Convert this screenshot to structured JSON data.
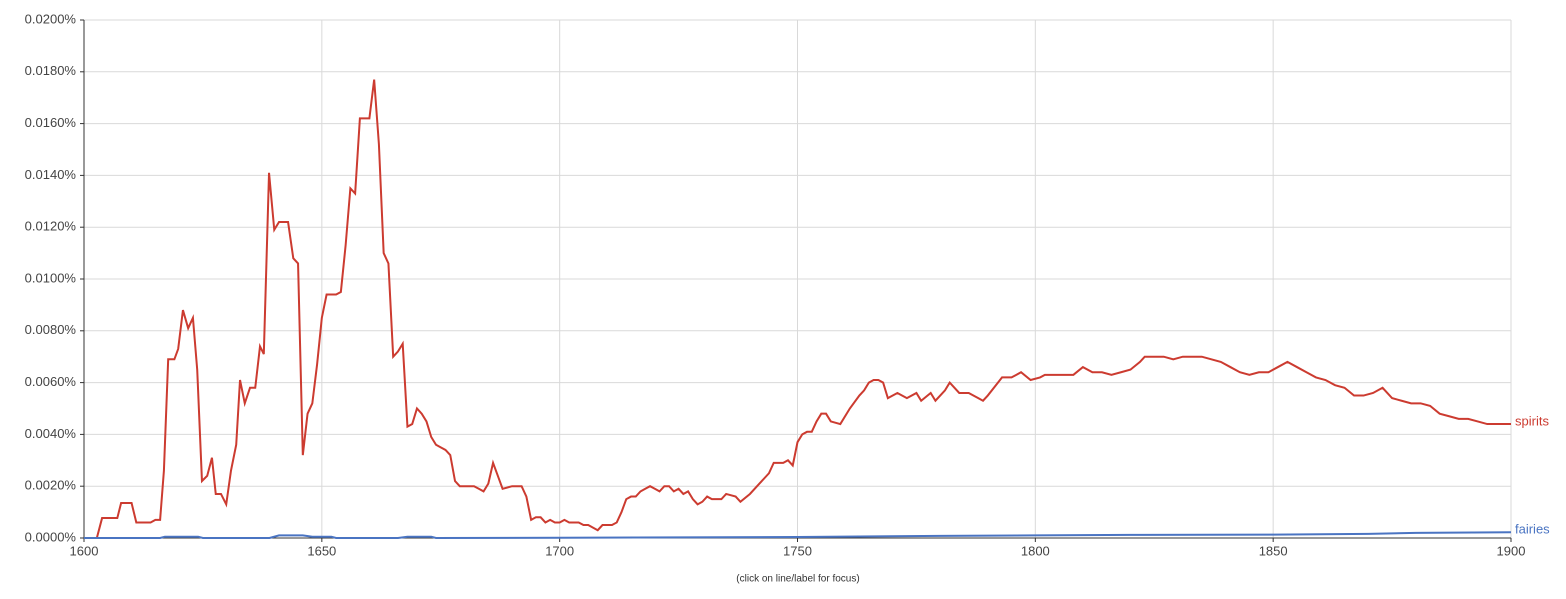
{
  "chart_data": {
    "type": "line",
    "note": "(click on line/label for focus)",
    "xlim": [
      1600,
      1900
    ],
    "xticks": [
      1600,
      1650,
      1700,
      1750,
      1800,
      1850,
      1900
    ],
    "ylim": [
      0,
      0.02
    ],
    "yticks": [
      {
        "value": 0,
        "label": "0.0000%"
      },
      {
        "value": 0.002,
        "label": "0.0020%"
      },
      {
        "value": 0.004,
        "label": "0.0040%"
      },
      {
        "value": 0.006,
        "label": "0.0060%"
      },
      {
        "value": 0.008,
        "label": "0.0080%"
      },
      {
        "value": 0.01,
        "label": "0.0100%"
      },
      {
        "value": 0.012,
        "label": "0.0120%"
      },
      {
        "value": 0.014,
        "label": "0.0140%"
      },
      {
        "value": 0.016,
        "label": "0.0160%"
      },
      {
        "value": 0.018,
        "label": "0.0180%"
      },
      {
        "value": 0.02,
        "label": "0.0200%"
      }
    ],
    "grid": true,
    "series": [
      {
        "name": "spirits",
        "color": "#cc3b30",
        "x": [
          1600,
          1602.7,
          1603.8,
          1607,
          1607.8,
          1610,
          1611,
          1614,
          1615,
          1616,
          1616.8,
          1617.7,
          1619,
          1619.8,
          1620.8,
          1621.9,
          1622.9,
          1623.8,
          1624.8,
          1625.9,
          1626.9,
          1627.7,
          1628.8,
          1629.9,
          1630.9,
          1632,
          1632.8,
          1633.8,
          1634.9,
          1636,
          1637,
          1637.8,
          1638.9,
          1640,
          1641,
          1642.9,
          1644,
          1645,
          1646,
          1647,
          1648,
          1649,
          1650,
          1651,
          1652,
          1653,
          1654,
          1655,
          1656,
          1657,
          1658,
          1659,
          1660,
          1661,
          1662,
          1663,
          1664,
          1665,
          1666,
          1667,
          1668,
          1669,
          1670,
          1671,
          1672,
          1673,
          1674,
          1675,
          1676,
          1677,
          1678,
          1679,
          1680,
          1681,
          1682,
          1683,
          1684,
          1685,
          1686,
          1687,
          1688,
          1690,
          1692,
          1693,
          1694,
          1695,
          1696,
          1697,
          1698,
          1699,
          1700,
          1701,
          1702,
          1703,
          1704,
          1705,
          1706,
          1707,
          1708,
          1709,
          1710,
          1711,
          1712,
          1713,
          1714,
          1715,
          1716,
          1717,
          1718,
          1719,
          1720,
          1721,
          1722,
          1723,
          1724,
          1725,
          1726,
          1727,
          1728,
          1729,
          1730,
          1731,
          1732,
          1734,
          1735,
          1737,
          1738,
          1740,
          1742,
          1744,
          1745,
          1746,
          1747,
          1748,
          1749,
          1750,
          1751,
          1752,
          1753,
          1754,
          1755,
          1756,
          1757,
          1759,
          1761,
          1763,
          1764,
          1765,
          1766,
          1767,
          1768,
          1769,
          1771,
          1773,
          1775,
          1776,
          1778,
          1779,
          1781,
          1782,
          1784,
          1786,
          1788,
          1789,
          1790,
          1793,
          1795,
          1796,
          1797,
          1799,
          1801,
          1802,
          1804,
          1806,
          1808,
          1810,
          1812,
          1814,
          1816,
          1818,
          1820,
          1822,
          1823,
          1825,
          1827,
          1829,
          1831,
          1833,
          1835,
          1837,
          1839,
          1841,
          1843,
          1845,
          1847,
          1849,
          1851,
          1853,
          1855,
          1857,
          1859,
          1861,
          1863,
          1865,
          1867,
          1869,
          1871,
          1873,
          1875,
          1877,
          1879,
          1881,
          1883,
          1885,
          1887,
          1889,
          1891,
          1893,
          1895,
          1897,
          1900
        ],
        "values": [
          0,
          0,
          0.00077,
          0.00077,
          0.00135,
          0.00135,
          0.0006,
          0.0006,
          0.0007,
          0.0007,
          0.0026,
          0.0069,
          0.0069,
          0.0073,
          0.0088,
          0.0081,
          0.0085,
          0.0065,
          0.0022,
          0.0024,
          0.0031,
          0.0017,
          0.0017,
          0.0013,
          0.0026,
          0.0036,
          0.0061,
          0.0052,
          0.0058,
          0.0058,
          0.0074,
          0.0071,
          0.0141,
          0.0119,
          0.0122,
          0.0122,
          0.0108,
          0.0106,
          0.0032,
          0.0048,
          0.0052,
          0.0067,
          0.0085,
          0.0094,
          0.0094,
          0.0094,
          0.0095,
          0.0113,
          0.0135,
          0.0133,
          0.0162,
          0.0162,
          0.0162,
          0.0177,
          0.0152,
          0.011,
          0.0106,
          0.007,
          0.0072,
          0.0075,
          0.0043,
          0.0044,
          0.005,
          0.0048,
          0.0045,
          0.0039,
          0.0036,
          0.0035,
          0.0034,
          0.0032,
          0.0022,
          0.002,
          0.002,
          0.002,
          0.002,
          0.0019,
          0.0018,
          0.0021,
          0.0029,
          0.0024,
          0.0019,
          0.002,
          0.002,
          0.0016,
          0.0007,
          0.0008,
          0.0008,
          0.0006,
          0.0007,
          0.0006,
          0.0006,
          0.0007,
          0.0006,
          0.0006,
          0.0006,
          0.0005,
          0.0005,
          0.0004,
          0.0003,
          0.0005,
          0.0005,
          0.0005,
          0.0006,
          0.001,
          0.0015,
          0.0016,
          0.0016,
          0.0018,
          0.0019,
          0.002,
          0.0019,
          0.0018,
          0.002,
          0.002,
          0.0018,
          0.0019,
          0.0017,
          0.0018,
          0.0015,
          0.0013,
          0.0014,
          0.0016,
          0.0015,
          0.0015,
          0.0017,
          0.0016,
          0.0014,
          0.0017,
          0.0021,
          0.0025,
          0.0029,
          0.0029,
          0.0029,
          0.003,
          0.0028,
          0.0037,
          0.004,
          0.0041,
          0.0041,
          0.0045,
          0.0048,
          0.0048,
          0.0045,
          0.0044,
          0.005,
          0.0055,
          0.0057,
          0.006,
          0.0061,
          0.0061,
          0.006,
          0.0054,
          0.0056,
          0.0054,
          0.0056,
          0.0053,
          0.0056,
          0.0053,
          0.0057,
          0.006,
          0.0056,
          0.0056,
          0.0054,
          0.0053,
          0.0055,
          0.0062,
          0.0062,
          0.0063,
          0.0064,
          0.0061,
          0.0062,
          0.0063,
          0.0063,
          0.0063,
          0.0063,
          0.0066,
          0.0064,
          0.0064,
          0.0063,
          0.0064,
          0.0065,
          0.0068,
          0.007,
          0.007,
          0.007,
          0.0069,
          0.007,
          0.007,
          0.007,
          0.0069,
          0.0068,
          0.0066,
          0.0064,
          0.0063,
          0.0064,
          0.0064,
          0.0066,
          0.0068,
          0.0066,
          0.0064,
          0.0062,
          0.0061,
          0.0059,
          0.0058,
          0.0055,
          0.0055,
          0.0056,
          0.0058,
          0.0054,
          0.0053,
          0.0052,
          0.0052,
          0.0051,
          0.0048,
          0.0047,
          0.0046,
          0.0046,
          0.0045,
          0.0044,
          0.0044,
          0.0044
        ]
      },
      {
        "name": "fairies",
        "color": "#4a74c2",
        "x": [
          1600,
          1616,
          1617,
          1624,
          1625,
          1639,
          1641,
          1646,
          1648,
          1652,
          1653,
          1666,
          1668,
          1673,
          1674,
          1700,
          1750,
          1780,
          1800,
          1820,
          1850,
          1870,
          1880,
          1900
        ],
        "values": [
          0,
          0,
          5e-05,
          5e-05,
          0,
          0,
          0.0001,
          0.0001,
          5e-05,
          5e-05,
          0,
          0,
          5e-05,
          5e-05,
          0,
          1e-05,
          4e-05,
          8e-05,
          0.0001,
          0.00012,
          0.00013,
          0.00016,
          0.0002,
          0.00022
        ]
      }
    ]
  }
}
